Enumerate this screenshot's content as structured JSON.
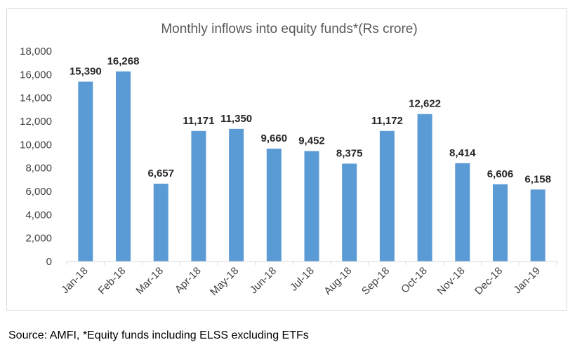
{
  "chart_data": {
    "type": "bar",
    "title": "Monthly inflows into equity funds*(Rs crore)",
    "categories": [
      "Jan-18",
      "Feb-18",
      "Mar-18",
      "Apr-18",
      "May-18",
      "Jun-18",
      "Jul-18",
      "Aug-18",
      "Sep-18",
      "Oct-18",
      "Nov-18",
      "Dec-18",
      "Jan-19"
    ],
    "values": [
      15390,
      16268,
      6657,
      11171,
      11350,
      9660,
      9452,
      8375,
      11172,
      12622,
      8414,
      6606,
      6158
    ],
    "data_labels": [
      "15,390",
      "16,268",
      "6,657",
      "11,171",
      "11,350",
      "9,660",
      "9,452",
      "8,375",
      "11,172",
      "12,622",
      "8,414",
      "6,606",
      "6,158"
    ],
    "yticks": [
      "0",
      "2,000",
      "4,000",
      "6,000",
      "8,000",
      "10,000",
      "12,000",
      "14,000",
      "16,000",
      "18,000"
    ],
    "ylim": [
      0,
      18000
    ],
    "grid": false,
    "legend": "none",
    "bar_color": "#5b9bd5"
  },
  "source_note": "Source: AMFI, *Equity funds including ELSS excluding ETFs"
}
